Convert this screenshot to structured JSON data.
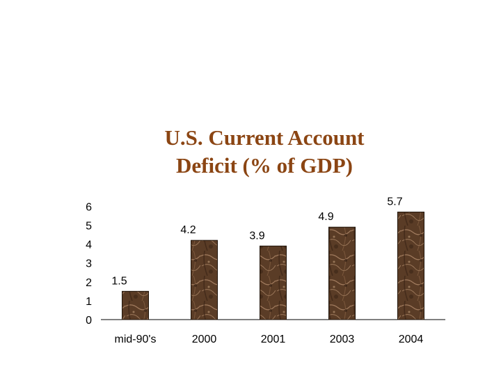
{
  "chart_data": {
    "type": "bar",
    "title_lines": [
      "U.S. Current Account",
      "Deficit (% of GDP)"
    ],
    "categories": [
      "mid-90's",
      "2000",
      "2001",
      "2003",
      "2004"
    ],
    "values": [
      1.5,
      4.2,
      3.9,
      4.9,
      5.7
    ],
    "data_labels": [
      "1.5",
      "4.2",
      "3.9",
      "4.9",
      "5.7"
    ],
    "yticks": [
      "0",
      "1",
      "2",
      "3",
      "4",
      "5",
      "6"
    ],
    "ylim": [
      0,
      6
    ],
    "grid": false,
    "legend": "none",
    "xlabel": "",
    "ylabel": "",
    "colors": {
      "title": "#8B4513",
      "bar_fill": "#5a3c26",
      "bar_vein": "#b89070",
      "axis": "#000000"
    }
  }
}
